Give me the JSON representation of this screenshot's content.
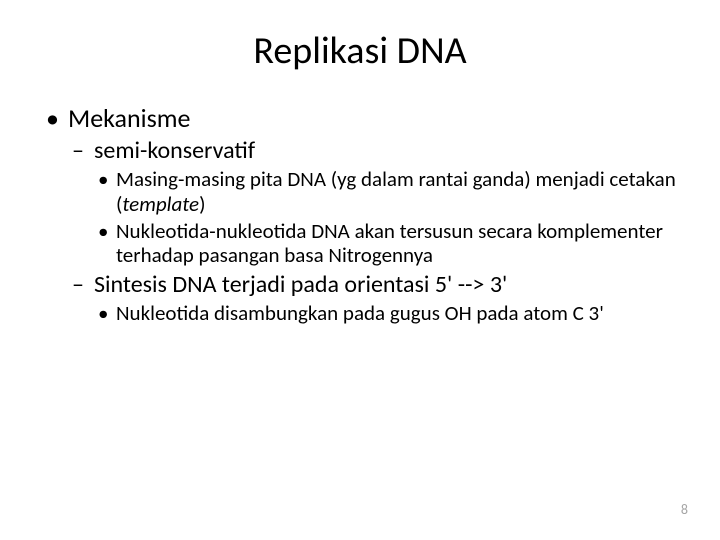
{
  "title": "Replikasi DNA",
  "bullets": {
    "mekanisme": "Mekanisme",
    "semi_konservatif": "semi-konservatif",
    "semi_sub1_a": "Masing-masing pita DNA (yg dalam rantai ganda) menjadi cetakan (",
    "semi_sub1_b": "template",
    "semi_sub1_c": ")",
    "semi_sub2": "Nukleotida-nukleotida DNA akan tersusun secara komplementer terhadap pasangan basa Nitrogennya",
    "sintesis": "Sintesis DNA terjadi pada orientasi 5' --> 3'",
    "sintesis_sub1": "Nukleotida disambungkan pada gugus OH pada atom C 3'"
  },
  "page_number": "8",
  "colors": {
    "background": "#ffffff",
    "text": "#000000",
    "page_number": "#a6a6a6"
  },
  "fontsizes": {
    "title": 38,
    "l1": 26,
    "l2": 24,
    "l3": 21,
    "page_number": 14
  }
}
